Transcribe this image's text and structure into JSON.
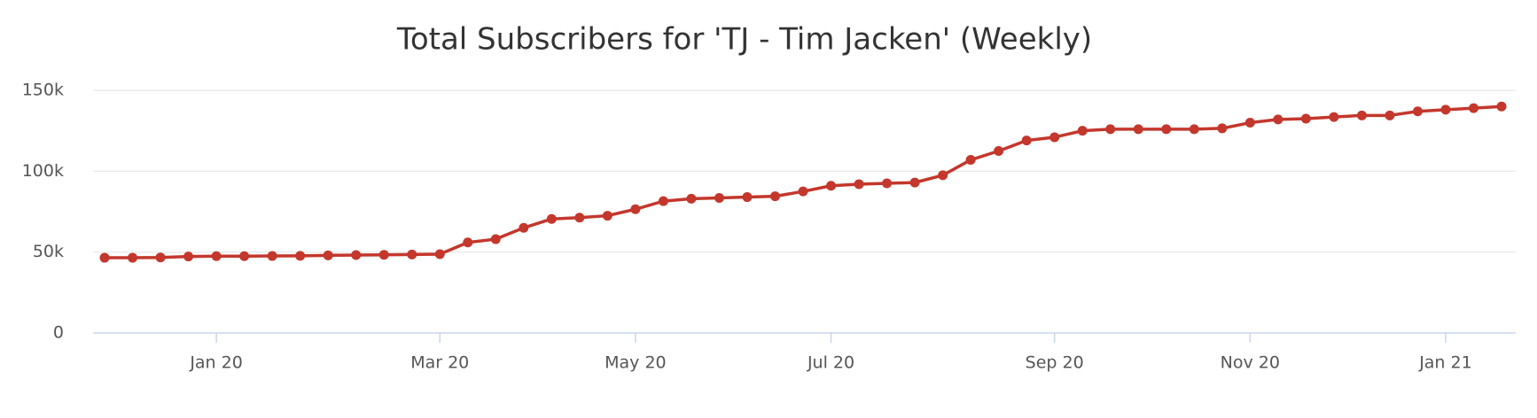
{
  "chart_data": {
    "type": "line",
    "title": "Total Subscribers for 'TJ - Tim Jacken' (Weekly)",
    "categories": [
      null,
      null,
      null,
      null,
      "Jan 20",
      null,
      null,
      null,
      null,
      null,
      null,
      null,
      "Mar 20",
      null,
      null,
      null,
      null,
      null,
      null,
      "May 20",
      null,
      null,
      null,
      null,
      null,
      null,
      "Jul 20",
      null,
      null,
      null,
      null,
      null,
      null,
      null,
      "Sep 20",
      null,
      null,
      null,
      null,
      null,
      null,
      "Nov 20",
      null,
      null,
      null,
      null,
      null,
      null,
      "Jan 21",
      null,
      null
    ],
    "series": [
      {
        "name": "Subscribers",
        "color": "#c4372c",
        "values": [
          46500,
          46500,
          46700,
          47300,
          47500,
          47500,
          47600,
          47700,
          48000,
          48200,
          48300,
          48500,
          48700,
          56000,
          58000,
          65000,
          70500,
          71300,
          72500,
          76500,
          81500,
          83000,
          83500,
          84000,
          84500,
          87500,
          91000,
          92000,
          92500,
          93000,
          97500,
          107000,
          112500,
          119000,
          121000,
          125000,
          126000,
          126000,
          126000,
          126000,
          126500,
          130000,
          132000,
          132500,
          133500,
          134500,
          134500,
          137000,
          138000,
          139000,
          140000
        ]
      }
    ],
    "ylim": [
      0,
      150000
    ],
    "yticks": [
      0,
      {
        "value": 50000,
        "label": "50k"
      },
      {
        "value": 100000,
        "label": "100k"
      },
      {
        "value": 150000,
        "label": "150k"
      }
    ],
    "grid": true
  }
}
